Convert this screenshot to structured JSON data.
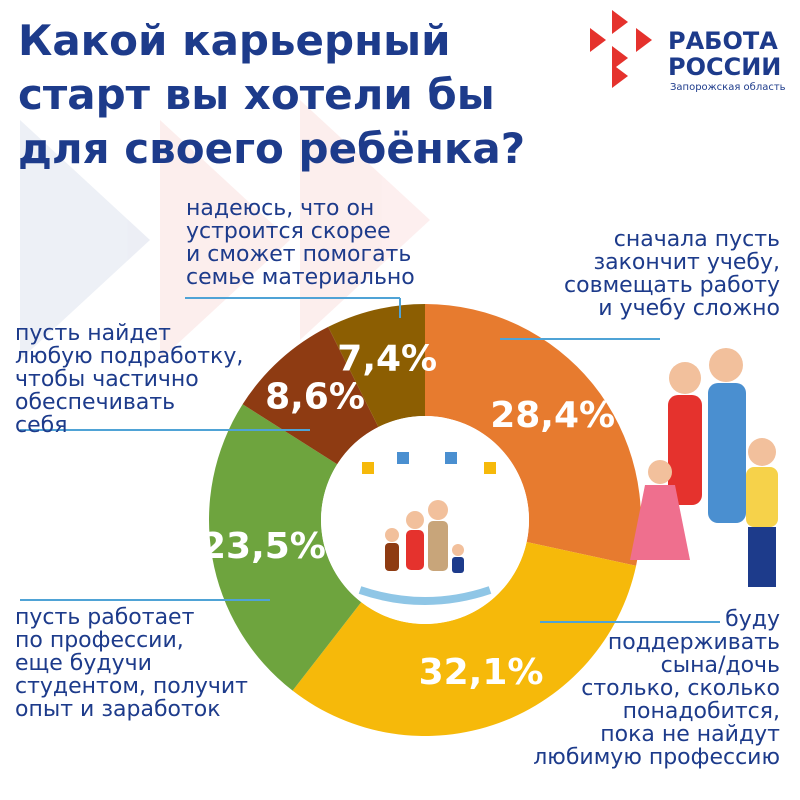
{
  "chart_data": {
    "type": "donut",
    "title": "Какой карьерный\nстарт вы хотели бы\nдля  своего ребёнка?",
    "categories": [
      "сначала пусть\nзакончит учебу,\nсовмещать работу\nи учебу сложно",
      "буду\nподдерживать\nсына/дочь\nстолько, сколько\nпонадобится,\nпока не найдут\nлюбимую профессию",
      "пусть работает\nпо профессии,\nеще будучи\nстудентом, получит\nопыт и заработок",
      "пусть найдет\nлюбую подработку,\nчтобы частично\nобеспечивать\nсебя",
      "надеюсь, что он\nустроится скорее\nи сможет помогать\nсемье материально"
    ],
    "values": [
      28.4,
      32.1,
      23.5,
      8.6,
      7.4
    ],
    "value_labels": [
      "28,4%",
      "32,1%",
      "23,5%",
      "8,6%",
      "7,4%"
    ],
    "colors": [
      "#e77b2f",
      "#f6b90a",
      "#6ea43e",
      "#8e3b12",
      "#8c5e02"
    ]
  },
  "logo": {
    "name": "РАБОТА\nРОССИИ",
    "region": "Запорожская область"
  }
}
